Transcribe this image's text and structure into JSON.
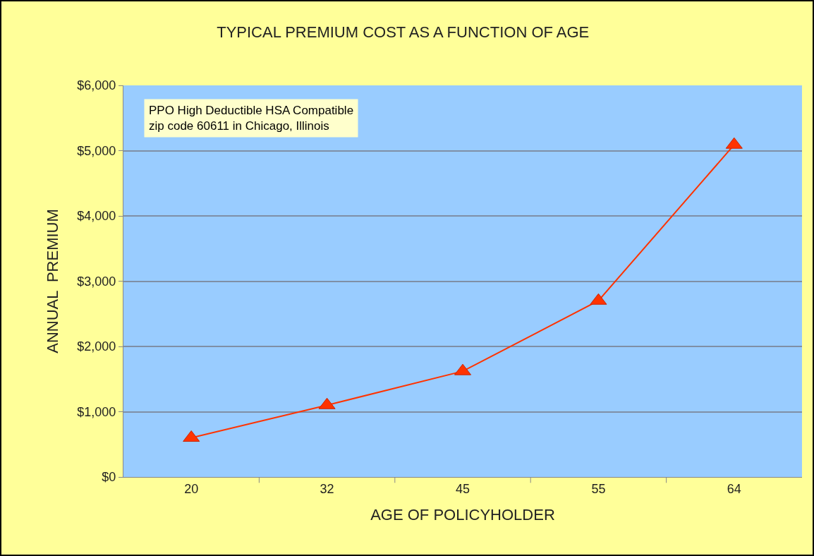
{
  "chart_data": {
    "type": "line",
    "title": "TYPICAL PREMIUM COST AS A FUNCTION OF AGE",
    "xlabel": "AGE OF POLICYHOLDER",
    "ylabel": "ANNUAL  PREMIUM",
    "categories": [
      "20",
      "32",
      "45",
      "55",
      "64"
    ],
    "series": [
      {
        "color": "#ff3300",
        "values": [
          600,
          1100,
          1620,
          2700,
          5090
        ]
      }
    ],
    "ylim": [
      0,
      6000
    ],
    "yticks": [
      {
        "value": 0,
        "label": "$0"
      },
      {
        "value": 1000,
        "label": "$1,000"
      },
      {
        "value": 2000,
        "label": "$2,000"
      },
      {
        "value": 3000,
        "label": "$3,000"
      },
      {
        "value": 4000,
        "label": "$4,000"
      },
      {
        "value": 5000,
        "label": "$5,000"
      },
      {
        "value": 6000,
        "label": "$6,000"
      }
    ],
    "grid": "y",
    "marker": "triangle",
    "line_style": "solid",
    "annotations": [
      "PPO High Deductible HSA Compatible\nzip code 60611 in Chicago, Illinois"
    ]
  }
}
